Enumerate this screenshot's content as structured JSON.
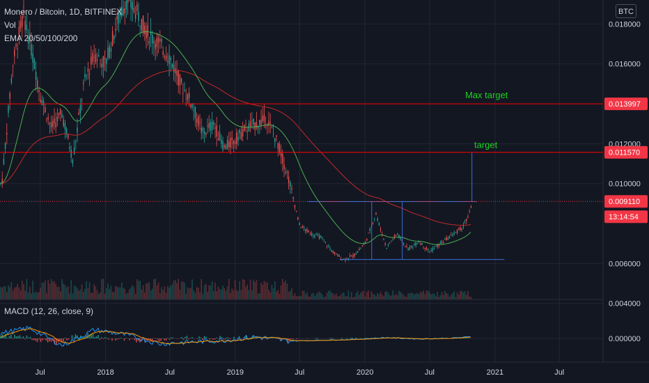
{
  "header": {
    "title": "Monero / Bitcoin, 1D, BITFINEX",
    "vol_label": "Vol",
    "ema_label": "EMA 20/50/100/200",
    "macd_label": "MACD (12, 26, close, 9)"
  },
  "currency_button": "BTC",
  "colors": {
    "background": "#131722",
    "grid": "#232733",
    "resistance_line": "#ff0000",
    "target_text": "#1fd11f",
    "price_label_bg": "#f23645",
    "box_line": "#3b6fd8",
    "up_candle": "#26a69a",
    "down_candle": "#ef5350",
    "ema_fast": "#2962ff",
    "ema_slow": "#c62828",
    "macd_line": "#2196f3",
    "signal_line": "#ff9800"
  },
  "chart_data": {
    "type": "line",
    "title": "Monero / Bitcoin, 1D, BITFINEX",
    "y_axis": {
      "ticks": [
        "0.018000",
        "0.016000",
        "0.012000",
        "0.010000",
        "0.006000",
        "0.004000"
      ],
      "tick_values": [
        0.018,
        0.016,
        0.012,
        0.01,
        0.006,
        0.004
      ],
      "range": [
        0.0042,
        0.0192
      ]
    },
    "x_axis": {
      "ticks": [
        "Jul",
        "2018",
        "Jul",
        "2019",
        "Jul",
        "2020",
        "Jul",
        "2021",
        "Jul"
      ],
      "tick_dates": [
        "2017-07-01",
        "2018-01-01",
        "2018-07-01",
        "2019-01-01",
        "2019-07-01",
        "2020-01-01",
        "2020-07-01",
        "2021-01-01",
        "2021-07-01"
      ],
      "range": [
        "2017-03-10",
        "2021-11-01"
      ]
    },
    "series": [
      {
        "name": "Monero / Bitcoin",
        "x": [
          "2017-03-15",
          "2017-04-15",
          "2017-05-15",
          "2017-06-01",
          "2017-07-01",
          "2017-08-01",
          "2017-09-01",
          "2017-10-01",
          "2017-11-01",
          "2017-12-01",
          "2018-01-01",
          "2018-02-01",
          "2018-03-01",
          "2018-04-01",
          "2018-05-01",
          "2018-06-01",
          "2018-07-01",
          "2018-08-01",
          "2018-09-01",
          "2018-10-01",
          "2018-11-01",
          "2018-12-01",
          "2019-01-01",
          "2019-02-01",
          "2019-03-01",
          "2019-04-01",
          "2019-05-01",
          "2019-06-01",
          "2019-07-01",
          "2019-08-01",
          "2019-09-01",
          "2019-10-01",
          "2019-11-01",
          "2019-12-01",
          "2020-01-01",
          "2020-02-01",
          "2020-03-01",
          "2020-04-01",
          "2020-05-01",
          "2020-06-01",
          "2020-07-01",
          "2020-08-01",
          "2020-09-01",
          "2020-10-01",
          "2020-10-20",
          "2020-10-28"
        ],
        "y": [
          0.01,
          0.016,
          0.0185,
          0.0172,
          0.0145,
          0.0128,
          0.0135,
          0.0112,
          0.015,
          0.0165,
          0.016,
          0.018,
          0.0192,
          0.0185,
          0.0175,
          0.017,
          0.0163,
          0.015,
          0.014,
          0.0125,
          0.013,
          0.0118,
          0.0122,
          0.0128,
          0.013,
          0.0132,
          0.012,
          0.0102,
          0.0079,
          0.0075,
          0.0073,
          0.0066,
          0.0062,
          0.0064,
          0.007,
          0.0085,
          0.0068,
          0.0075,
          0.0067,
          0.0071,
          0.0066,
          0.007,
          0.0074,
          0.0078,
          0.0084,
          0.0091
        ]
      }
    ],
    "horizontal_levels": [
      {
        "value": 0.013997,
        "label": "0.013997",
        "annotation": "Max target"
      },
      {
        "value": 0.01157,
        "label": "0.011570",
        "annotation": "target"
      }
    ],
    "current_price": {
      "value": 0.00911,
      "label": "0.009110",
      "countdown": "13:14:54"
    },
    "box": {
      "top": 0.0091,
      "bottom": 0.0062,
      "from": "2019-07-25",
      "to": "2020-11-10"
    },
    "macd": {
      "ticks": [
        "0.000000"
      ],
      "series": [
        {
          "name": "MACD",
          "x": [
            "2017-03-15",
            "2017-06-01",
            "2017-09-01",
            "2017-12-01",
            "2018-03-01",
            "2018-06-01",
            "2018-09-01",
            "2018-12-01",
            "2019-03-01",
            "2019-06-01",
            "2019-09-01",
            "2019-12-01",
            "2020-03-01",
            "2020-06-01",
            "2020-09-01",
            "2020-10-28"
          ],
          "y": [
            0.0003,
            0.0006,
            -0.0004,
            0.0005,
            0.0002,
            -0.0003,
            -0.0002,
            -0.0001,
            0.0001,
            -0.00015,
            -0.0001,
            -5e-05,
            5e-05,
            -3e-05,
            2e-05,
            0.0001
          ]
        }
      ]
    }
  }
}
